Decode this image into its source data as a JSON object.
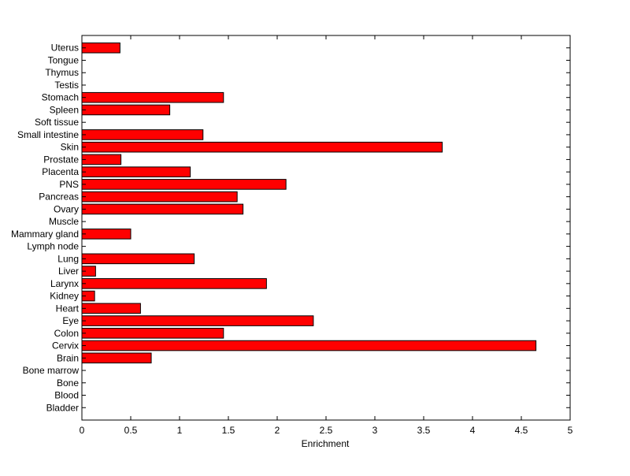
{
  "chart_data": {
    "type": "bar",
    "orientation": "horizontal",
    "title": "",
    "xlabel": "Enrichment",
    "ylabel": "",
    "xlim": [
      0,
      5
    ],
    "xticks": [
      0,
      0.5,
      1,
      1.5,
      2,
      2.5,
      3,
      3.5,
      4,
      4.5,
      5
    ],
    "xtick_labels": [
      "0",
      "0.5",
      "1",
      "1.5",
      "2",
      "2.5",
      "3",
      "3.5",
      "4",
      "4.5",
      "5"
    ],
    "grid": false,
    "legend": "none",
    "bar_color": "#ff0000",
    "categories": [
      "Bladder",
      "Blood",
      "Bone",
      "Bone marrow",
      "Brain",
      "Cervix",
      "Colon",
      "Eye",
      "Heart",
      "Kidney",
      "Larynx",
      "Liver",
      "Lung",
      "Lymph node",
      "Mammary gland",
      "Muscle",
      "Ovary",
      "Pancreas",
      "PNS",
      "Placenta",
      "Prostate",
      "Skin",
      "Small intestine",
      "Soft tissue",
      "Spleen",
      "Stomach",
      "Testis",
      "Thymus",
      "Tongue",
      "Uterus"
    ],
    "values": [
      0,
      0,
      0,
      0,
      0.71,
      4.65,
      1.45,
      2.37,
      0.6,
      0.13,
      1.89,
      0.14,
      1.15,
      0,
      0.5,
      0,
      1.65,
      1.59,
      2.09,
      1.11,
      0.4,
      3.69,
      1.24,
      0,
      0.9,
      1.45,
      0,
      0,
      0,
      0.39
    ]
  }
}
